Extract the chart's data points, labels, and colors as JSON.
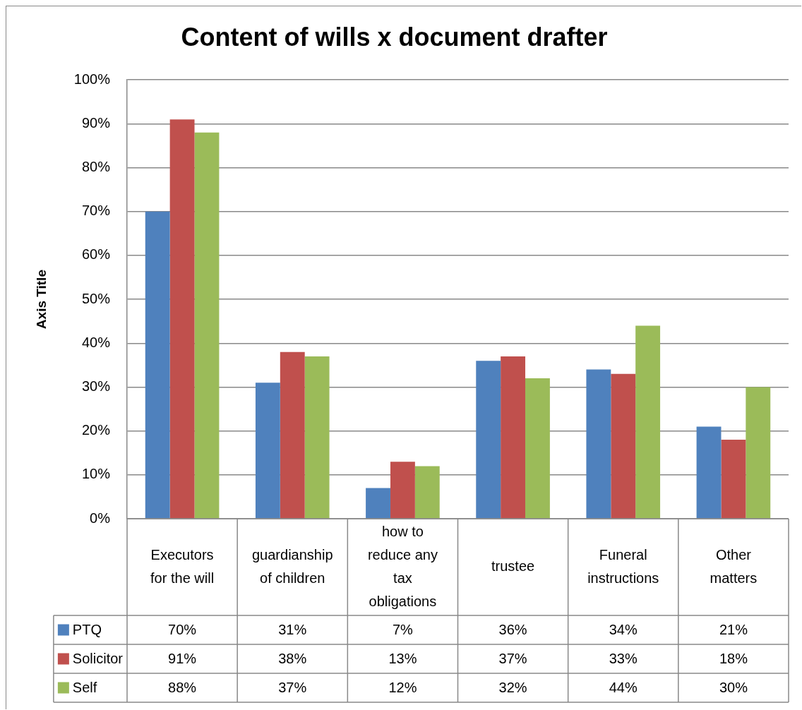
{
  "chart_data": {
    "type": "bar",
    "title": "Content of wills x document drafter",
    "ylabel": "Axis Title",
    "categories": [
      "Executors for the will",
      "guardianship of children",
      "how to reduce any tax obligations",
      "trustee",
      "Funeral instructions",
      "Other matters"
    ],
    "series": [
      {
        "name": "PTQ",
        "color": "#4f81bd",
        "values": [
          70,
          31,
          7,
          36,
          34,
          21
        ],
        "value_labels": [
          "70%",
          "31%",
          "7%",
          "36%",
          "34%",
          "21%"
        ]
      },
      {
        "name": "Solicitor",
        "color": "#c0504d",
        "values": [
          91,
          38,
          13,
          37,
          33,
          18
        ],
        "value_labels": [
          "91%",
          "38%",
          "13%",
          "37%",
          "33%",
          "18%"
        ]
      },
      {
        "name": "Self",
        "color": "#9bbb59",
        "values": [
          88,
          37,
          12,
          32,
          44,
          30
        ],
        "value_labels": [
          "88%",
          "37%",
          "12%",
          "32%",
          "44%",
          "30%"
        ]
      }
    ],
    "ylim": [
      0,
      100
    ],
    "yticks": [
      {
        "value": 0,
        "label": "0%"
      },
      {
        "value": 10,
        "label": "10%"
      },
      {
        "value": 20,
        "label": "20%"
      },
      {
        "value": 30,
        "label": "30%"
      },
      {
        "value": 40,
        "label": "40%"
      },
      {
        "value": 50,
        "label": "50%"
      },
      {
        "value": 60,
        "label": "60%"
      },
      {
        "value": 70,
        "label": "70%"
      },
      {
        "value": 80,
        "label": "80%"
      },
      {
        "value": 90,
        "label": "90%"
      },
      {
        "value": 100,
        "label": "100%"
      }
    ],
    "grid": "y",
    "legend": "bottom"
  }
}
